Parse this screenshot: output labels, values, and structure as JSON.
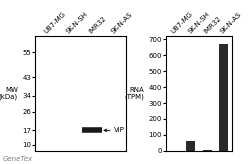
{
  "chart_data": [
    {
      "type": "blot",
      "categories": [
        "U87-MG",
        "SK-N-SH",
        "IMR32",
        "SK-N-AS"
      ],
      "values": [
        null,
        null,
        17,
        null
      ],
      "color": "#1a1a1a",
      "ylabel": "MW\n(kDa)",
      "ylim": [
        7,
        63
      ],
      "yticks": [
        55,
        43,
        34,
        26,
        17,
        10
      ],
      "annotations": [
        {
          "text": "VIP",
          "x": "IMR32",
          "y": 17
        },
        {
          "text": "GeneTex"
        }
      ]
    },
    {
      "type": "bar",
      "categories": [
        "U87-MG",
        "SK-N-SH",
        "IMR32",
        "SK-N-AS"
      ],
      "values": [
        2,
        65,
        8,
        670
      ],
      "color": "#2a2a2a",
      "ylabel": "RNA\n(TPM)",
      "ylim": [
        0,
        720
      ],
      "yticks": [
        0,
        100,
        200,
        300,
        400,
        500,
        600,
        700
      ]
    }
  ]
}
